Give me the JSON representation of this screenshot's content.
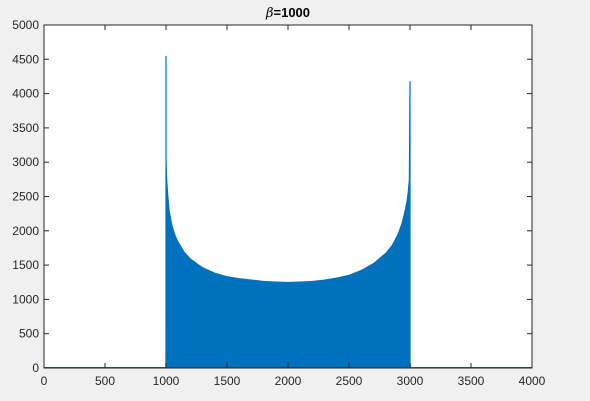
{
  "chart_data": {
    "type": "area",
    "title": "β=1000",
    "title_parts": {
      "symbol": "β",
      "rest": "=1000"
    },
    "xlabel": "",
    "ylabel": "",
    "xlim": [
      0,
      4000
    ],
    "ylim": [
      0,
      5000
    ],
    "grid": false,
    "xticks": [
      0,
      500,
      1000,
      1500,
      2000,
      2500,
      3000,
      3500,
      4000
    ],
    "yticks": [
      0,
      500,
      1000,
      1500,
      2000,
      2500,
      3000,
      3500,
      4000,
      4500,
      5000
    ],
    "xtick_labels": [
      "0",
      "500",
      "1000",
      "1500",
      "2000",
      "2500",
      "3000",
      "3500",
      "4000"
    ],
    "ytick_labels": [
      "0",
      "500",
      "1000",
      "1500",
      "2000",
      "2500",
      "3000",
      "3500",
      "4000",
      "4500",
      "5000"
    ],
    "color": "#0072bd",
    "series": [
      {
        "x": [
          0,
          995,
          1000,
          1002,
          1005,
          1010,
          1020,
          1030,
          1050,
          1075,
          1100,
          1150,
          1200,
          1300,
          1400,
          1500,
          1600,
          1700,
          1800,
          1900,
          2000,
          2100,
          2200,
          2300,
          2400,
          2500,
          2600,
          2700,
          2800,
          2850,
          2900,
          2930,
          2950,
          2970,
          2980,
          2990,
          2995,
          3000,
          3005,
          3010,
          3020,
          4000
        ],
        "values": [
          0,
          0,
          4550,
          3300,
          3000,
          2750,
          2500,
          2300,
          2100,
          1950,
          1850,
          1700,
          1600,
          1470,
          1390,
          1340,
          1310,
          1290,
          1270,
          1260,
          1255,
          1260,
          1270,
          1290,
          1320,
          1360,
          1430,
          1530,
          1680,
          1790,
          1960,
          2110,
          2250,
          2420,
          2550,
          2750,
          4180,
          300,
          60,
          10,
          0,
          0
        ]
      }
    ],
    "peaks": [
      {
        "x": 1000,
        "y": 4550
      },
      {
        "x": 3000,
        "y": 4180
      }
    ]
  }
}
